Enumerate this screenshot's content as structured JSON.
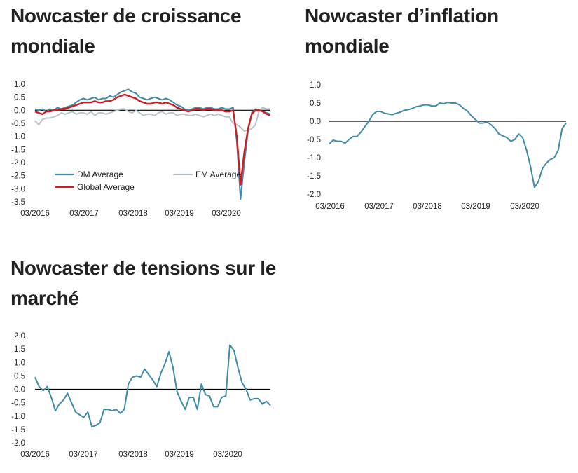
{
  "panels": {
    "growth": {
      "title": "Nowcaster de croissance mondiale"
    },
    "inflation": {
      "title": "Nowcaster d’inflation mondiale"
    },
    "stress": {
      "title": "Nowcaster de tensions sur le marché"
    }
  },
  "colors": {
    "dm": "#3f8aa8",
    "em": "#b7c4cb",
    "global": "#cc1f24",
    "axis": "#000000"
  },
  "chart_data": [
    {
      "id": "growth",
      "type": "line",
      "x_labels": [
        "03/2016",
        "03/2017",
        "03/2018",
        "03/2019",
        "03/2020"
      ],
      "ylim": [
        -3.5,
        1.0
      ],
      "y_ticks": [
        "1.0",
        "0.5",
        "0.0",
        "-0.5",
        "-1.0",
        "-1.5",
        "-2.0",
        "-2.5",
        "-3.0",
        "-3.5"
      ],
      "x_start": 2016.0,
      "x_end": 2020.95,
      "legend": {
        "placement": "lower-left"
      },
      "series": [
        {
          "name": "DM Average",
          "color_key": "dm",
          "values": [
            0.05,
            0.0,
            0.05,
            -0.05,
            0.05,
            0.0,
            0.1,
            0.05,
            0.1,
            0.15,
            0.2,
            0.3,
            0.4,
            0.45,
            0.4,
            0.45,
            0.5,
            0.4,
            0.45,
            0.45,
            0.55,
            0.5,
            0.6,
            0.7,
            0.75,
            0.8,
            0.7,
            0.65,
            0.5,
            0.45,
            0.4,
            0.45,
            0.5,
            0.45,
            0.4,
            0.45,
            0.4,
            0.3,
            0.2,
            0.15,
            0.05,
            0.0,
            0.05,
            0.1,
            0.1,
            0.05,
            0.1,
            0.1,
            0.05,
            0.05,
            0.1,
            0.05,
            0.05,
            0.1,
            -1.2,
            -3.4,
            -2.0,
            -0.8,
            -0.1,
            0.05,
            0.0,
            -0.05,
            -0.1,
            -0.15
          ]
        },
        {
          "name": "EM Average",
          "color_key": "em",
          "values": [
            -0.4,
            -0.55,
            -0.35,
            -0.3,
            -0.3,
            -0.25,
            -0.2,
            -0.1,
            -0.15,
            -0.1,
            -0.05,
            -0.15,
            -0.1,
            -0.1,
            -0.15,
            -0.05,
            -0.2,
            -0.1,
            -0.1,
            -0.15,
            -0.1,
            -0.05,
            0.0,
            0.05,
            0.05,
            -0.05,
            -0.1,
            0.0,
            -0.1,
            -0.2,
            -0.15,
            -0.15,
            -0.2,
            -0.1,
            -0.05,
            -0.15,
            -0.1,
            -0.1,
            -0.2,
            -0.15,
            -0.15,
            -0.2,
            -0.2,
            -0.15,
            -0.2,
            -0.25,
            -0.2,
            -0.15,
            -0.2,
            -0.15,
            -0.2,
            -0.25,
            -0.25,
            -0.5,
            -0.55,
            -0.65,
            -0.8,
            -0.75,
            -0.7,
            -0.55,
            0.0,
            0.1,
            0.05,
            0.05
          ]
        },
        {
          "name": "Global Average",
          "color_key": "global",
          "values": [
            -0.05,
            -0.1,
            -0.15,
            -0.05,
            -0.05,
            0.0,
            0.0,
            0.05,
            0.05,
            0.1,
            0.15,
            0.2,
            0.25,
            0.3,
            0.3,
            0.3,
            0.35,
            0.3,
            0.3,
            0.35,
            0.35,
            0.4,
            0.5,
            0.55,
            0.6,
            0.55,
            0.5,
            0.45,
            0.35,
            0.3,
            0.25,
            0.25,
            0.3,
            0.3,
            0.25,
            0.3,
            0.25,
            0.2,
            0.1,
            0.05,
            0.0,
            -0.05,
            0.0,
            0.05,
            0.05,
            0.0,
            0.05,
            0.05,
            0.0,
            0.0,
            0.0,
            -0.05,
            -0.05,
            0.0,
            -1.0,
            -2.85,
            -1.6,
            -0.7,
            -0.15,
            0.0,
            0.0,
            -0.05,
            -0.15,
            -0.2
          ]
        }
      ]
    },
    {
      "id": "inflation",
      "type": "line",
      "x_labels": [
        "03/2016",
        "03/2017",
        "03/2018",
        "03/2019",
        "03/2020"
      ],
      "ylim": [
        -2.0,
        1.0
      ],
      "y_ticks": [
        "1.0",
        "0.5",
        "0.0",
        "-0.5",
        "-1.0",
        "-1.5",
        "-2.0"
      ],
      "x_start": 2016.0,
      "x_end": 2020.95,
      "series": [
        {
          "name": "",
          "color_key": "dm",
          "values": [
            -0.62,
            -0.52,
            -0.55,
            -0.55,
            -0.6,
            -0.5,
            -0.42,
            -0.42,
            -0.3,
            -0.15,
            0.0,
            0.18,
            0.27,
            0.27,
            0.22,
            0.2,
            0.18,
            0.22,
            0.25,
            0.3,
            0.32,
            0.35,
            0.4,
            0.42,
            0.45,
            0.45,
            0.42,
            0.42,
            0.5,
            0.48,
            0.52,
            0.5,
            0.5,
            0.45,
            0.35,
            0.28,
            0.15,
            0.05,
            -0.05,
            -0.05,
            -0.02,
            -0.1,
            -0.2,
            -0.35,
            -0.4,
            -0.45,
            -0.55,
            -0.5,
            -0.35,
            -0.45,
            -0.8,
            -1.25,
            -1.82,
            -1.65,
            -1.3,
            -1.15,
            -1.05,
            -1.0,
            -0.8,
            -0.2,
            -0.05
          ]
        }
      ]
    },
    {
      "id": "stress",
      "type": "line",
      "x_labels": [
        "03/2016",
        "03/2017",
        "03/2018",
        "03/2019",
        "03/2020"
      ],
      "ylim": [
        -2.0,
        2.0
      ],
      "y_ticks": [
        "2.0",
        "1.5",
        "1.0",
        "0.5",
        "0.0",
        "-0.5",
        "-1.0",
        "-1.5",
        "-2.0"
      ],
      "x_start": 2016.0,
      "x_end": 2020.95,
      "series": [
        {
          "name": "",
          "color_key": "dm",
          "values": [
            0.45,
            0.1,
            -0.05,
            0.1,
            -0.3,
            -0.8,
            -0.55,
            -0.4,
            -0.15,
            -0.5,
            -0.85,
            -0.95,
            -1.05,
            -0.85,
            -1.4,
            -1.35,
            -1.25,
            -0.75,
            -0.75,
            -0.8,
            -0.75,
            -0.9,
            -0.75,
            0.2,
            0.45,
            0.5,
            0.45,
            0.75,
            0.55,
            0.35,
            0.1,
            0.6,
            0.95,
            1.4,
            0.8,
            -0.1,
            -0.45,
            -0.75,
            -0.3,
            -0.3,
            -0.75,
            0.2,
            -0.2,
            -0.25,
            -0.65,
            -0.65,
            -0.3,
            -0.25,
            1.65,
            1.45,
            0.8,
            0.25,
            0.0,
            -0.4,
            -0.35,
            -0.35,
            -0.55,
            -0.45,
            -0.6
          ]
        }
      ]
    }
  ]
}
